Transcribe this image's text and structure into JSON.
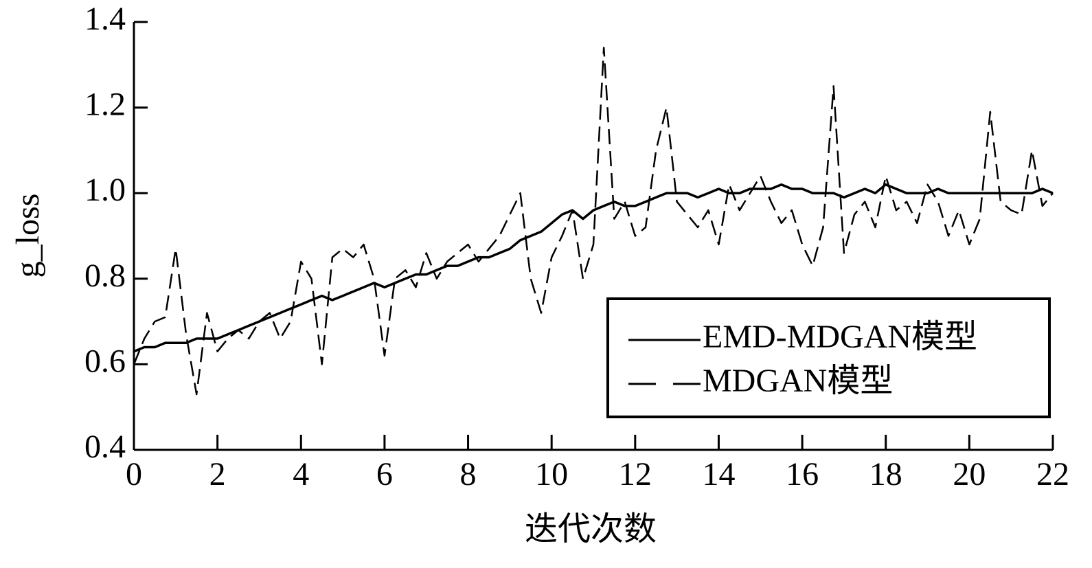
{
  "chart_data": {
    "type": "line",
    "x_label": "迭代次数",
    "y_label": "g_loss",
    "x": [
      0,
      0.25,
      0.5,
      0.75,
      1,
      1.25,
      1.5,
      1.75,
      2,
      2.25,
      2.5,
      2.75,
      3,
      3.25,
      3.5,
      3.75,
      4,
      4.25,
      4.5,
      4.75,
      5,
      5.25,
      5.5,
      5.75,
      6,
      6.25,
      6.5,
      6.75,
      7,
      7.25,
      7.5,
      7.75,
      8,
      8.25,
      8.5,
      8.75,
      9,
      9.25,
      9.5,
      9.75,
      10,
      10.25,
      10.5,
      10.75,
      11,
      11.25,
      11.5,
      11.75,
      12,
      12.25,
      12.5,
      12.75,
      13,
      13.25,
      13.5,
      13.75,
      14,
      14.25,
      14.5,
      14.75,
      15,
      15.25,
      15.5,
      15.75,
      16,
      16.25,
      16.5,
      16.75,
      17,
      17.25,
      17.5,
      17.75,
      18,
      18.25,
      18.5,
      18.75,
      19,
      19.25,
      19.5,
      19.75,
      20,
      20.25,
      20.5,
      20.75,
      21,
      21.25,
      21.5,
      21.75,
      22
    ],
    "series": [
      {
        "name": "EMD-MDGAN模型",
        "color": "#000000",
        "dash": false,
        "values": [
          0.63,
          0.64,
          0.64,
          0.65,
          0.65,
          0.65,
          0.66,
          0.66,
          0.66,
          0.67,
          0.68,
          0.69,
          0.7,
          0.71,
          0.72,
          0.73,
          0.74,
          0.75,
          0.76,
          0.75,
          0.76,
          0.77,
          0.78,
          0.79,
          0.78,
          0.79,
          0.8,
          0.81,
          0.81,
          0.82,
          0.83,
          0.83,
          0.84,
          0.85,
          0.85,
          0.86,
          0.87,
          0.89,
          0.9,
          0.91,
          0.93,
          0.95,
          0.96,
          0.94,
          0.96,
          0.97,
          0.98,
          0.97,
          0.97,
          0.98,
          0.99,
          1.0,
          1.0,
          1.0,
          0.99,
          1.0,
          1.01,
          1.0,
          1.0,
          1.01,
          1.01,
          1.01,
          1.02,
          1.01,
          1.01,
          1.0,
          1.0,
          1.0,
          0.99,
          1.0,
          1.01,
          1.0,
          1.02,
          1.01,
          1.0,
          1.0,
          1.0,
          1.01,
          1.0,
          1.0,
          1.0,
          1.0,
          1.0,
          1.0,
          1.0,
          1.0,
          1.0,
          1.01,
          1.0
        ]
      },
      {
        "name": "MDGAN模型",
        "color": "#000000",
        "dash": true,
        "values": [
          0.6,
          0.66,
          0.7,
          0.71,
          0.87,
          0.67,
          0.53,
          0.72,
          0.63,
          0.66,
          0.68,
          0.66,
          0.7,
          0.72,
          0.66,
          0.7,
          0.84,
          0.8,
          0.6,
          0.85,
          0.87,
          0.85,
          0.88,
          0.8,
          0.62,
          0.8,
          0.82,
          0.78,
          0.86,
          0.8,
          0.84,
          0.86,
          0.88,
          0.84,
          0.87,
          0.9,
          0.95,
          1.0,
          0.8,
          0.72,
          0.85,
          0.9,
          0.96,
          0.8,
          0.88,
          1.34,
          0.94,
          0.98,
          0.9,
          0.92,
          1.1,
          1.2,
          0.98,
          0.95,
          0.92,
          0.96,
          0.88,
          1.02,
          0.96,
          1.0,
          1.04,
          0.98,
          0.93,
          0.96,
          0.88,
          0.83,
          0.92,
          1.25,
          0.86,
          0.95,
          0.98,
          0.92,
          1.04,
          0.96,
          0.98,
          0.93,
          1.02,
          0.98,
          0.9,
          0.96,
          0.88,
          0.94,
          1.19,
          0.98,
          0.96,
          0.95,
          1.1,
          0.97,
          1.0
        ]
      }
    ],
    "xlim": [
      0,
      22
    ],
    "xticks": [
      0,
      2,
      4,
      6,
      8,
      10,
      12,
      14,
      16,
      18,
      20,
      22
    ],
    "ylim": [
      0.4,
      1.4
    ],
    "yticks": [
      0.4,
      0.6,
      0.8,
      {
        "value": 1,
        "label": "1.0"
      },
      1.2,
      1.4
    ],
    "legend": "lower-right"
  }
}
